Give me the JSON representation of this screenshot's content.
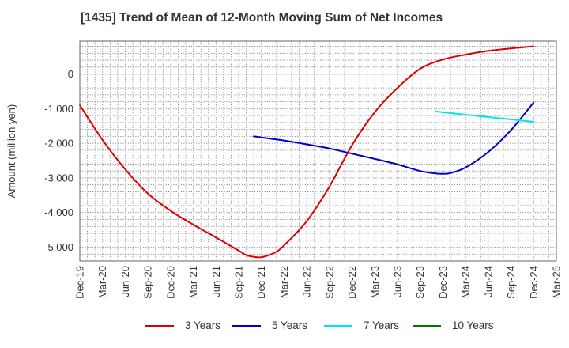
{
  "chart_data": {
    "type": "line",
    "title": "[1435]  Trend of Mean of 12-Month Moving Sum of Net Incomes",
    "ylabel": "Amount (million yen)",
    "xlabel": "",
    "x_ticks": [
      "Dec-19",
      "Mar-20",
      "Jun-20",
      "Sep-20",
      "Dec-20",
      "Mar-21",
      "Jun-21",
      "Sep-21",
      "Dec-21",
      "Mar-22",
      "Jun-22",
      "Sep-22",
      "Dec-22",
      "Mar-23",
      "Jun-23",
      "Sep-23",
      "Dec-23",
      "Mar-24",
      "Jun-24",
      "Sep-24",
      "Dec-24",
      "Mar-25"
    ],
    "y_ticks": [
      0,
      -1000,
      -2000,
      -3000,
      -4000,
      -5000
    ],
    "y_tick_labels": [
      "0",
      "-1,000",
      "-2,000",
      "-3,000",
      "-4,000",
      "-5,000"
    ],
    "ylim": [
      -5400,
      950
    ],
    "grid": true,
    "legend_position": "bottom",
    "series": [
      {
        "name": "3 Years",
        "color": "#dd0000",
        "x": [
          "Dec-19",
          "Mar-20",
          "Jun-20",
          "Sep-20",
          "Dec-20",
          "Mar-21",
          "Jun-21",
          "Sep-21",
          "Oct-21",
          "Nov-21",
          "Dec-21",
          "Jan-22",
          "Feb-22",
          "Mar-22",
          "Jun-22",
          "Sep-22",
          "Dec-22",
          "Mar-23",
          "Jun-23",
          "Sep-23",
          "Dec-23",
          "Mar-24",
          "Jun-24",
          "Sep-24",
          "Dec-24"
        ],
        "values": [
          -900,
          -1900,
          -2750,
          -3450,
          -3950,
          -4350,
          -4720,
          -5100,
          -5230,
          -5280,
          -5290,
          -5230,
          -5130,
          -4950,
          -4250,
          -3250,
          -2050,
          -1100,
          -400,
          150,
          420,
          560,
          670,
          740,
          800
        ]
      },
      {
        "name": "5 Years",
        "color": "#0000cc",
        "x": [
          "Nov-21",
          "Dec-21",
          "Mar-22",
          "Jun-22",
          "Sep-22",
          "Dec-22",
          "Mar-23",
          "Jun-23",
          "Sep-23",
          "Nov-23",
          "Dec-23",
          "Jan-24",
          "Mar-24",
          "Jun-24",
          "Sep-24",
          "Dec-24"
        ],
        "values": [
          -1800,
          -1830,
          -1920,
          -2030,
          -2150,
          -2300,
          -2450,
          -2610,
          -2800,
          -2870,
          -2880,
          -2860,
          -2700,
          -2250,
          -1620,
          -820
        ]
      },
      {
        "name": "7 Years",
        "color": "#00e5ee",
        "x": [
          "Nov-23",
          "Dec-24"
        ],
        "values": [
          -1080,
          -1380
        ]
      },
      {
        "name": "10 Years",
        "color": "#007700",
        "x": [],
        "values": []
      }
    ]
  }
}
